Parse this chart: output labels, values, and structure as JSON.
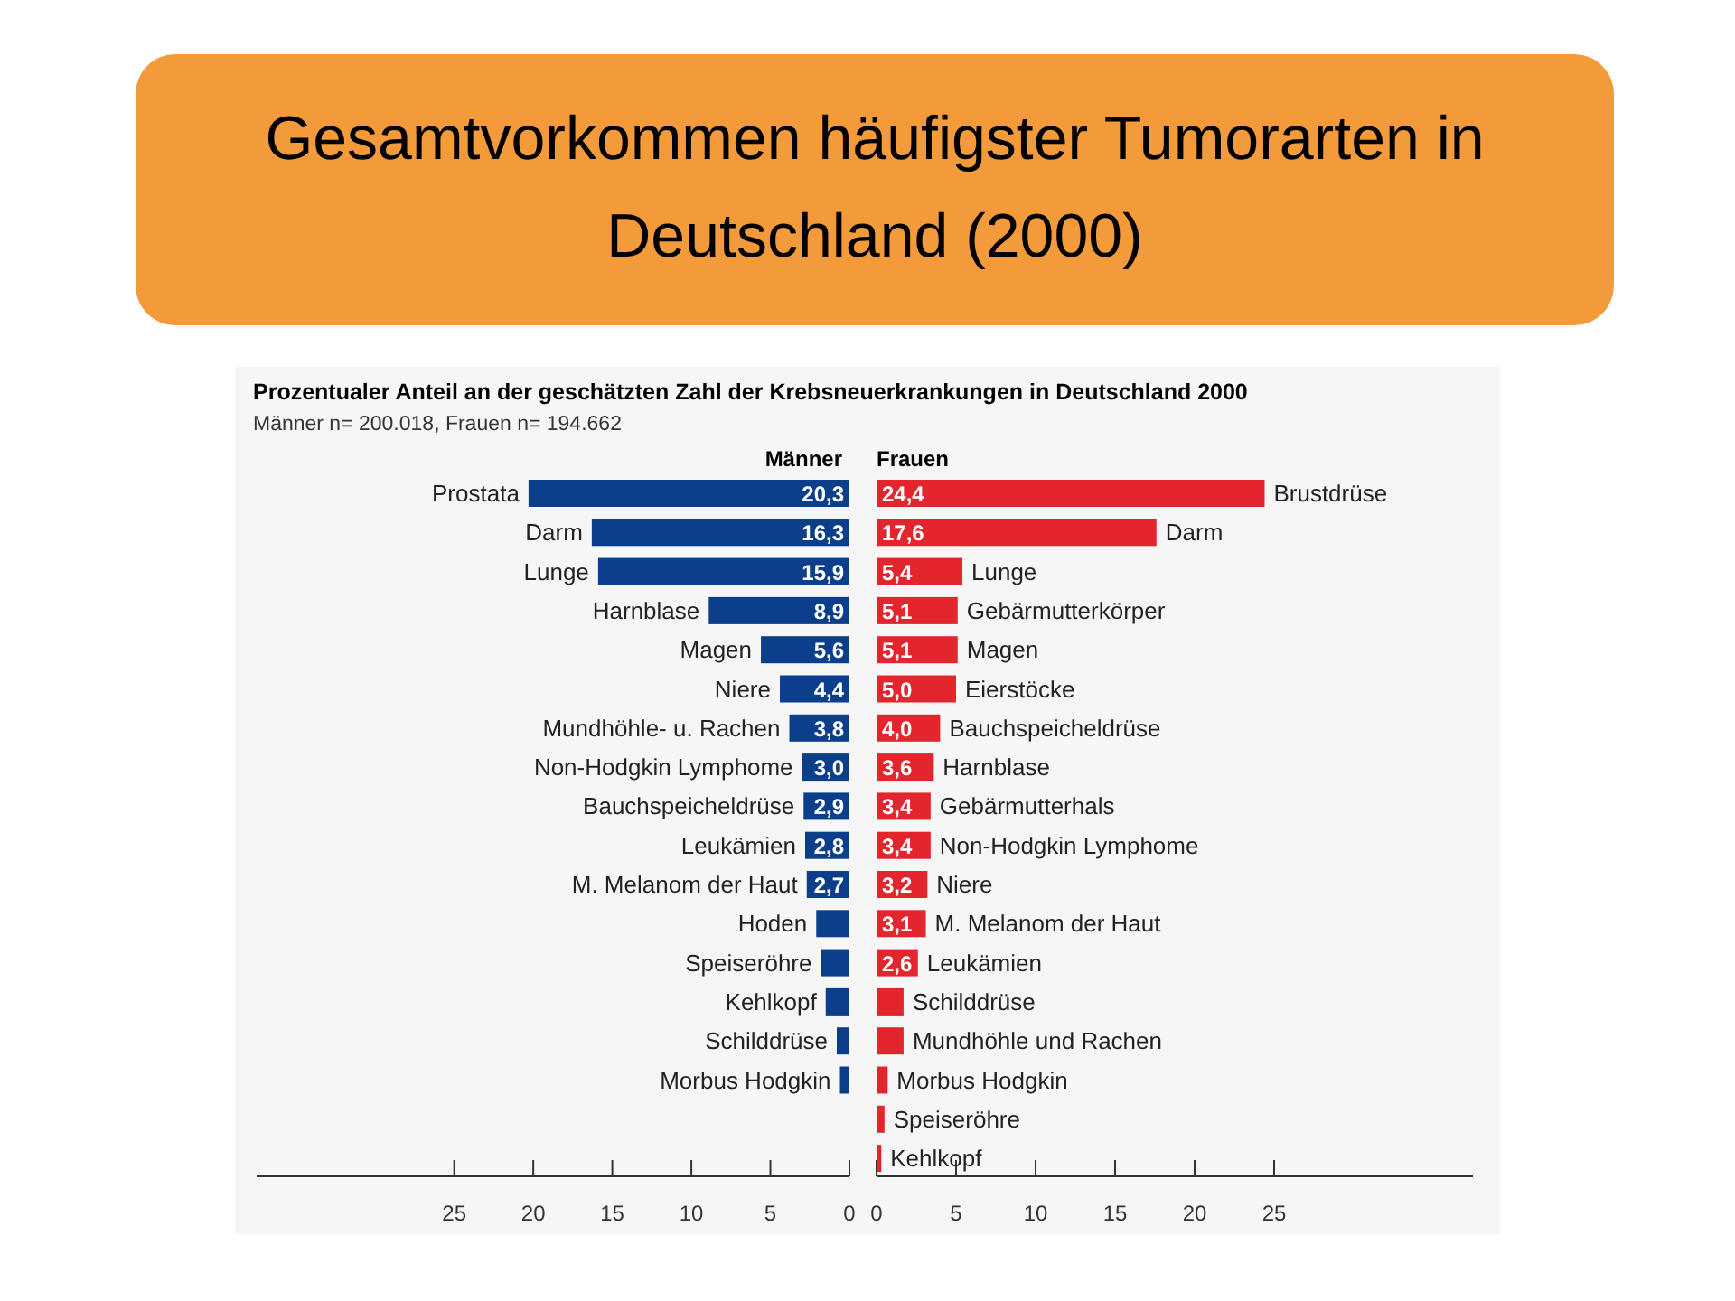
{
  "chart_data": [
    {
      "type": "bar",
      "orientation": "horizontal",
      "title": "Gesamtvorkommen häufigster Tumorarten in Deutschland (2000)",
      "subtitle": "Prozentualer Anteil an der geschätzten Zahl der Krebsneuerkrankungen in Deutschland 2000",
      "annotations": [
        "Männer n= 200.018, Frauen n= 194.662"
      ],
      "categories": [
        "Prostata",
        "Darm",
        "Lunge",
        "Harnblase",
        "Magen",
        "Niere",
        "Mundhöhle- u. Rachen",
        "Non-Hodgkin Lymphome",
        "Bauchspeicheldrüse",
        "Leukämien",
        "M. Melanom der Haut",
        "Hoden",
        "Speiseröhre",
        "Kehlkopf",
        "Schilddrüse",
        "Morbus Hodgkin"
      ],
      "series": [
        {
          "name": "Männer",
          "color": "#0b3f8c",
          "values": [
            20.3,
            16.3,
            15.9,
            8.9,
            5.6,
            4.4,
            3.8,
            3.0,
            2.9,
            2.8,
            2.7,
            2.1,
            1.8,
            1.5,
            0.8,
            0.6
          ],
          "value_labels": [
            "20,3",
            "16,3",
            "15,9",
            "8,9",
            "5,6",
            "4,4",
            "3,8",
            "3,0",
            "2,9",
            "2,8",
            "2,7",
            null,
            null,
            null,
            null,
            null
          ]
        }
      ],
      "xlim": [
        37.5,
        0
      ],
      "xticks": [
        25,
        20,
        15,
        10,
        5,
        0
      ]
    },
    {
      "type": "bar",
      "orientation": "horizontal",
      "categories": [
        "Brustdrüse",
        "Darm",
        "Lunge",
        "Gebärmutterkörper",
        "Magen",
        "Eierstöcke",
        "Bauchspeicheldrüse",
        "Harnblase",
        "Gebärmutterhals",
        "Non-Hodgkin Lymphome",
        "Niere",
        "M. Melanom der Haut",
        "Leukämien",
        "Schilddrüse",
        "Mundhöhle und Rachen",
        "Morbus Hodgkin",
        "Speiseröhre",
        "Kehlkopf"
      ],
      "series": [
        {
          "name": "Frauen",
          "color": "#e3262d",
          "values": [
            24.4,
            17.6,
            5.4,
            5.1,
            5.1,
            5.0,
            4.0,
            3.6,
            3.4,
            3.4,
            3.2,
            3.1,
            2.6,
            1.7,
            1.7,
            0.7,
            0.5,
            0.3
          ],
          "value_labels": [
            "24,4",
            "17,6",
            "5,4",
            "5,1",
            "5,1",
            "5,0",
            "4,0",
            "3,6",
            "3,4",
            "3,4",
            "3,2",
            "3,1",
            "2,6",
            null,
            null,
            null,
            null,
            null
          ]
        }
      ],
      "xlim": [
        0,
        37.5
      ],
      "xticks": [
        0,
        5,
        10,
        15,
        20,
        25
      ]
    }
  ]
}
